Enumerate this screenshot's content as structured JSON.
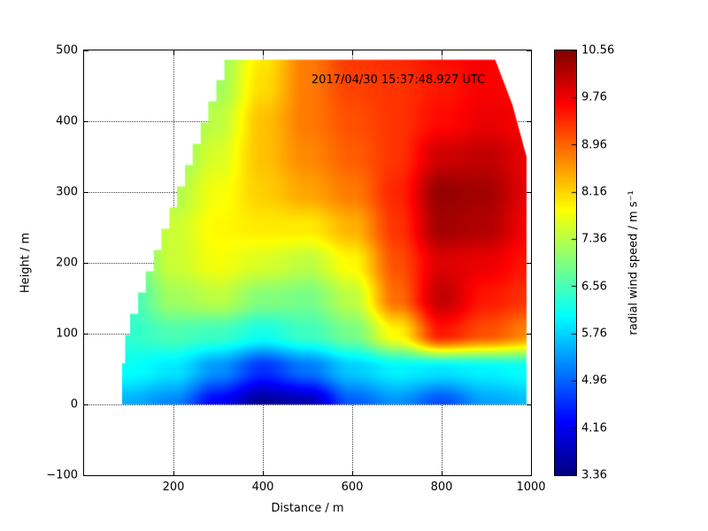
{
  "chart_data": {
    "type": "heatmap",
    "title": "",
    "annotation": "2017/04/30 15:37:48.927 UTC",
    "xlabel": "Distance / m",
    "ylabel": "Height / m",
    "colorbar_label": "radial wind speed / m s⁻¹",
    "colormap": "jet",
    "grid": true,
    "xlim": [
      0,
      1000
    ],
    "ylim": [
      -100,
      500
    ],
    "xticks": [
      200,
      400,
      600,
      800,
      1000
    ],
    "yticks": [
      -100,
      0,
      100,
      200,
      300,
      400,
      500
    ],
    "vmin": 3.36,
    "vmax": 10.56,
    "colorbar_ticks": [
      3.36,
      4.16,
      4.96,
      5.76,
      6.56,
      7.36,
      8.16,
      8.96,
      9.76,
      10.56
    ],
    "x": [
      0,
      100,
      200,
      300,
      400,
      500,
      600,
      700,
      800,
      900,
      1000
    ],
    "y": [
      0,
      50,
      100,
      150,
      200,
      250,
      300,
      350,
      400,
      450,
      500
    ],
    "values": [
      [
        5.5,
        5.5,
        5.2,
        4.2,
        3.5,
        3.7,
        4.9,
        5.3,
        4.8,
        5.4,
        5.6
      ],
      [
        6.1,
        6.1,
        5.9,
        5.3,
        4.6,
        5.1,
        5.7,
        6.0,
        5.9,
        6.0,
        6.1
      ],
      [
        6.3,
        6.4,
        6.6,
        6.5,
        6.2,
        6.5,
        6.9,
        7.9,
        9.5,
        9.1,
        8.7
      ],
      [
        6.4,
        6.5,
        7.2,
        7.4,
        7.0,
        6.9,
        7.4,
        8.9,
        10.1,
        9.5,
        9.3
      ],
      [
        6.4,
        6.7,
        7.5,
        7.8,
        7.6,
        7.4,
        7.9,
        9.1,
        9.9,
        9.8,
        9.5
      ],
      [
        6.5,
        6.8,
        7.5,
        7.9,
        8.0,
        8.0,
        8.4,
        9.3,
        10.3,
        10.2,
        9.7
      ],
      [
        6.4,
        6.7,
        7.3,
        7.8,
        8.2,
        8.5,
        8.8,
        9.4,
        10.4,
        10.3,
        9.8
      ],
      [
        6.4,
        6.6,
        7.1,
        7.6,
        8.3,
        8.7,
        9.0,
        9.3,
        10.0,
        10.1,
        9.8
      ],
      [
        6.4,
        6.5,
        7.0,
        7.4,
        8.3,
        8.8,
        9.1,
        9.3,
        9.6,
        9.8,
        9.7
      ],
      [
        6.4,
        6.5,
        6.9,
        7.2,
        8.1,
        8.8,
        9.2,
        9.3,
        9.5,
        9.7,
        9.6
      ],
      [
        6.4,
        6.5,
        6.8,
        7.1,
        8.0,
        8.8,
        9.3,
        9.4,
        9.6,
        9.7,
        9.5
      ]
    ],
    "mask_polygon": [
      [
        85,
        0
      ],
      [
        990,
        0
      ],
      [
        990,
        350
      ],
      [
        958,
        424
      ],
      [
        920,
        487
      ],
      [
        314,
        487
      ],
      [
        314,
        458
      ],
      [
        296,
        458
      ],
      [
        296,
        428
      ],
      [
        278,
        428
      ],
      [
        278,
        398
      ],
      [
        261,
        398
      ],
      [
        261,
        368
      ],
      [
        243,
        368
      ],
      [
        243,
        338
      ],
      [
        226,
        338
      ],
      [
        226,
        308
      ],
      [
        208,
        308
      ],
      [
        208,
        278
      ],
      [
        191,
        278
      ],
      [
        191,
        248
      ],
      [
        173,
        248
      ],
      [
        173,
        218
      ],
      [
        156,
        218
      ],
      [
        156,
        188
      ],
      [
        138,
        188
      ],
      [
        138,
        158
      ],
      [
        121,
        158
      ],
      [
        121,
        128
      ],
      [
        103,
        128
      ],
      [
        103,
        98
      ],
      [
        92,
        98
      ],
      [
        92,
        58
      ],
      [
        85,
        58
      ]
    ]
  }
}
